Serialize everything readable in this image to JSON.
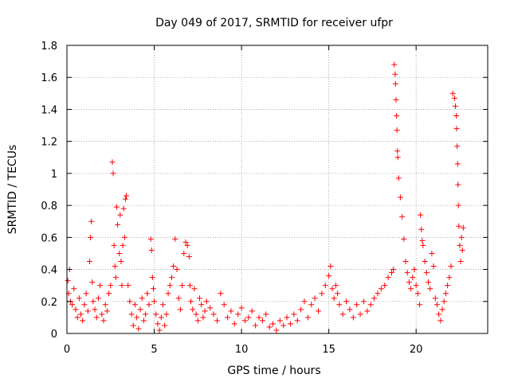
{
  "chart_data": {
    "type": "scatter",
    "title": "Day 049 of 2017, SRMTID for receiver ufpr",
    "xlabel": "GPS time / hours",
    "ylabel": "SRMTID / TECUs",
    "xlim": [
      0,
      24.1
    ],
    "ylim": [
      0,
      1.8
    ],
    "xticks": [
      0,
      5,
      10,
      15,
      20
    ],
    "yticks": [
      0,
      0.2,
      0.4,
      0.6,
      0.8,
      1,
      1.2,
      1.4,
      1.6,
      1.8
    ],
    "ytick_labels": [
      "0",
      "0.2",
      "0.4",
      "0.6",
      "0.8",
      "1",
      "1.2",
      "1.4",
      "1.6",
      "1.8"
    ],
    "grid": true,
    "marker": "plus",
    "color": "#ff0000",
    "series": [
      {
        "name": "SRMTID",
        "x": [
          0.05,
          0.1,
          0.15,
          0.2,
          0.3,
          0.4,
          0.5,
          0.6,
          0.7,
          0.8,
          0.9,
          1.0,
          1.1,
          1.2,
          1.3,
          1.35,
          1.4,
          1.45,
          1.5,
          1.6,
          1.7,
          1.8,
          1.9,
          2.0,
          2.1,
          2.2,
          2.3,
          2.4,
          2.5,
          2.6,
          2.65,
          2.7,
          2.75,
          2.8,
          2.85,
          2.9,
          3.0,
          3.05,
          3.1,
          3.15,
          3.2,
          3.25,
          3.3,
          3.35,
          3.4,
          3.5,
          3.6,
          3.7,
          3.8,
          3.9,
          4.0,
          4.1,
          4.2,
          4.3,
          4.4,
          4.5,
          4.6,
          4.7,
          4.8,
          4.85,
          4.9,
          4.95,
          5.0,
          5.1,
          5.2,
          5.3,
          5.4,
          5.5,
          5.6,
          5.7,
          5.8,
          5.9,
          6.0,
          6.1,
          6.2,
          6.3,
          6.4,
          6.5,
          6.6,
          6.7,
          6.8,
          6.9,
          7.0,
          7.05,
          7.1,
          7.2,
          7.3,
          7.4,
          7.5,
          7.6,
          7.7,
          7.8,
          7.9,
          8.0,
          8.2,
          8.4,
          8.6,
          8.8,
          9.0,
          9.2,
          9.4,
          9.6,
          9.8,
          10.0,
          10.2,
          10.4,
          10.6,
          10.8,
          11.0,
          11.2,
          11.4,
          11.6,
          11.8,
          12.0,
          12.2,
          12.4,
          12.6,
          12.8,
          13.0,
          13.2,
          13.4,
          13.6,
          13.8,
          14.0,
          14.2,
          14.4,
          14.6,
          14.8,
          15.0,
          15.1,
          15.2,
          15.3,
          15.4,
          15.5,
          15.6,
          15.8,
          16.0,
          16.2,
          16.4,
          16.6,
          16.8,
          17.0,
          17.2,
          17.4,
          17.6,
          17.8,
          18.0,
          18.2,
          18.4,
          18.6,
          18.7,
          18.75,
          18.8,
          18.82,
          18.85,
          18.88,
          18.9,
          18.93,
          18.95,
          19.0,
          19.1,
          19.2,
          19.3,
          19.4,
          19.5,
          19.6,
          19.7,
          19.8,
          19.9,
          20.0,
          20.1,
          20.2,
          20.25,
          20.3,
          20.35,
          20.4,
          20.5,
          20.6,
          20.7,
          20.8,
          20.9,
          21.0,
          21.1,
          21.2,
          21.3,
          21.4,
          21.5,
          21.6,
          21.7,
          21.8,
          21.9,
          22.0,
          22.1,
          22.2,
          22.25,
          22.3,
          22.32,
          22.35,
          22.38,
          22.4,
          22.42,
          22.45,
          22.5,
          22.55,
          22.6,
          22.65,
          22.7
        ],
        "y": [
          0.33,
          0.25,
          0.4,
          0.2,
          0.18,
          0.28,
          0.15,
          0.1,
          0.22,
          0.12,
          0.08,
          0.18,
          0.25,
          0.14,
          0.45,
          0.6,
          0.7,
          0.32,
          0.2,
          0.15,
          0.1,
          0.22,
          0.3,
          0.12,
          0.08,
          0.18,
          0.14,
          0.25,
          0.3,
          1.07,
          1.0,
          0.55,
          0.42,
          0.35,
          0.79,
          0.68,
          0.5,
          0.74,
          0.45,
          0.3,
          0.55,
          0.78,
          0.6,
          0.84,
          0.86,
          0.3,
          0.2,
          0.12,
          0.05,
          0.18,
          0.1,
          0.03,
          0.15,
          0.22,
          0.08,
          0.12,
          0.25,
          0.18,
          0.59,
          0.52,
          0.35,
          0.28,
          0.2,
          0.12,
          0.06,
          0.02,
          0.1,
          0.18,
          0.05,
          0.12,
          0.25,
          0.3,
          0.35,
          0.42,
          0.59,
          0.4,
          0.22,
          0.15,
          0.3,
          0.5,
          0.57,
          0.55,
          0.48,
          0.3,
          0.2,
          0.15,
          0.28,
          0.12,
          0.08,
          0.22,
          0.18,
          0.1,
          0.14,
          0.2,
          0.16,
          0.12,
          0.08,
          0.25,
          0.18,
          0.1,
          0.14,
          0.06,
          0.12,
          0.16,
          0.08,
          0.1,
          0.14,
          0.05,
          0.1,
          0.08,
          0.12,
          0.04,
          0.06,
          0.02,
          0.08,
          0.05,
          0.1,
          0.06,
          0.12,
          0.08,
          0.15,
          0.2,
          0.1,
          0.18,
          0.22,
          0.14,
          0.25,
          0.3,
          0.36,
          0.42,
          0.28,
          0.22,
          0.3,
          0.25,
          0.18,
          0.12,
          0.2,
          0.15,
          0.1,
          0.18,
          0.12,
          0.2,
          0.14,
          0.18,
          0.22,
          0.25,
          0.28,
          0.3,
          0.35,
          0.38,
          0.4,
          1.68,
          1.62,
          1.56,
          1.46,
          1.36,
          1.27,
          1.14,
          1.1,
          0.97,
          0.85,
          0.73,
          0.59,
          0.45,
          0.38,
          0.32,
          0.28,
          0.35,
          0.4,
          0.3,
          0.25,
          0.18,
          0.74,
          0.65,
          0.58,
          0.55,
          0.45,
          0.38,
          0.32,
          0.28,
          0.5,
          0.42,
          0.22,
          0.18,
          0.12,
          0.08,
          0.15,
          0.2,
          0.25,
          0.3,
          0.35,
          0.42,
          1.5,
          1.47,
          1.42,
          1.36,
          1.28,
          1.17,
          1.06,
          0.93,
          0.8,
          0.67,
          0.55,
          0.45,
          0.6,
          0.52,
          0.66
        ]
      }
    ]
  }
}
